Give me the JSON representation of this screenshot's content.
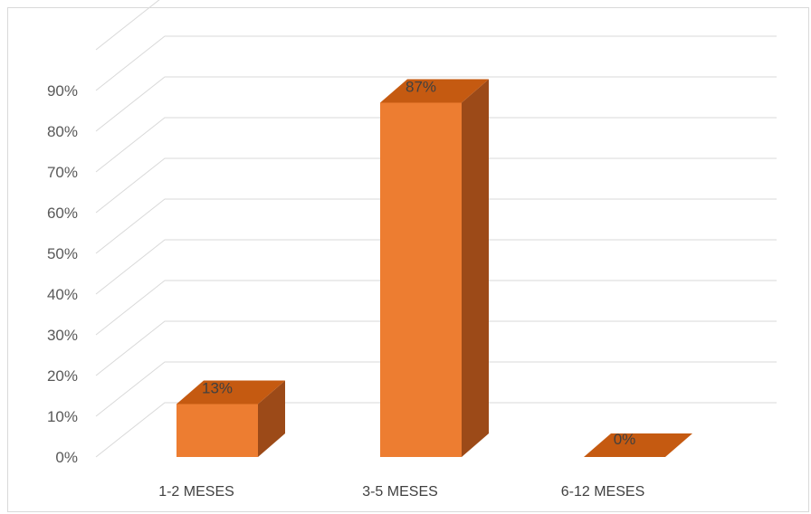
{
  "chart_data": {
    "type": "bar",
    "three_d": true,
    "categories": [
      "1-2 MESES",
      "3-5 MESES",
      "6-12 MESES"
    ],
    "values": [
      13,
      87,
      0
    ],
    "data_labels": [
      "13%",
      "87%",
      "0%"
    ],
    "y_ticks": [
      "0%",
      "10%",
      "20%",
      "30%",
      "40%",
      "50%",
      "60%",
      "70%",
      "80%",
      "90%"
    ],
    "ylim": [
      0,
      100
    ],
    "grid": true,
    "legend": "none",
    "colors": {
      "front": "#ED7D31",
      "top": "#C55A11",
      "side": "#9C4A18",
      "grid": "#D9D9D9"
    }
  }
}
